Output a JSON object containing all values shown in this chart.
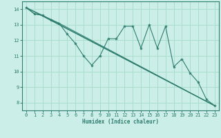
{
  "xlabel": "Humidex (Indice chaleur)",
  "ylabel": "",
  "bg_color": "#cceee8",
  "grid_color": "#aaddcc",
  "line_color": "#2e7d6e",
  "xlim": [
    -0.5,
    23.5
  ],
  "ylim": [
    7.5,
    14.5
  ],
  "yticks": [
    8,
    9,
    10,
    11,
    12,
    13,
    14
  ],
  "xticks": [
    0,
    1,
    2,
    3,
    4,
    5,
    6,
    7,
    8,
    9,
    10,
    11,
    12,
    13,
    14,
    15,
    16,
    17,
    18,
    19,
    20,
    21,
    22,
    23
  ],
  "series": [
    {
      "x": [
        0,
        1,
        2,
        3,
        4,
        5,
        6,
        7,
        8,
        9,
        10,
        11,
        12,
        13,
        14,
        15,
        16,
        17,
        18,
        19,
        20,
        21,
        22,
        23
      ],
      "y": [
        14.1,
        13.7,
        13.6,
        13.3,
        13.1,
        12.4,
        11.8,
        11.0,
        10.4,
        11.0,
        12.1,
        12.1,
        12.9,
        12.9,
        11.5,
        13.0,
        11.5,
        12.9,
        10.3,
        10.8,
        9.9,
        9.3,
        8.2,
        7.8
      ]
    },
    {
      "x": [
        0,
        4,
        23
      ],
      "y": [
        14.1,
        13.1,
        7.8
      ]
    },
    {
      "x": [
        0,
        1,
        2,
        3,
        23
      ],
      "y": [
        14.1,
        13.7,
        13.6,
        13.3,
        7.8
      ]
    },
    {
      "x": [
        0,
        23
      ],
      "y": [
        14.1,
        7.8
      ]
    }
  ]
}
